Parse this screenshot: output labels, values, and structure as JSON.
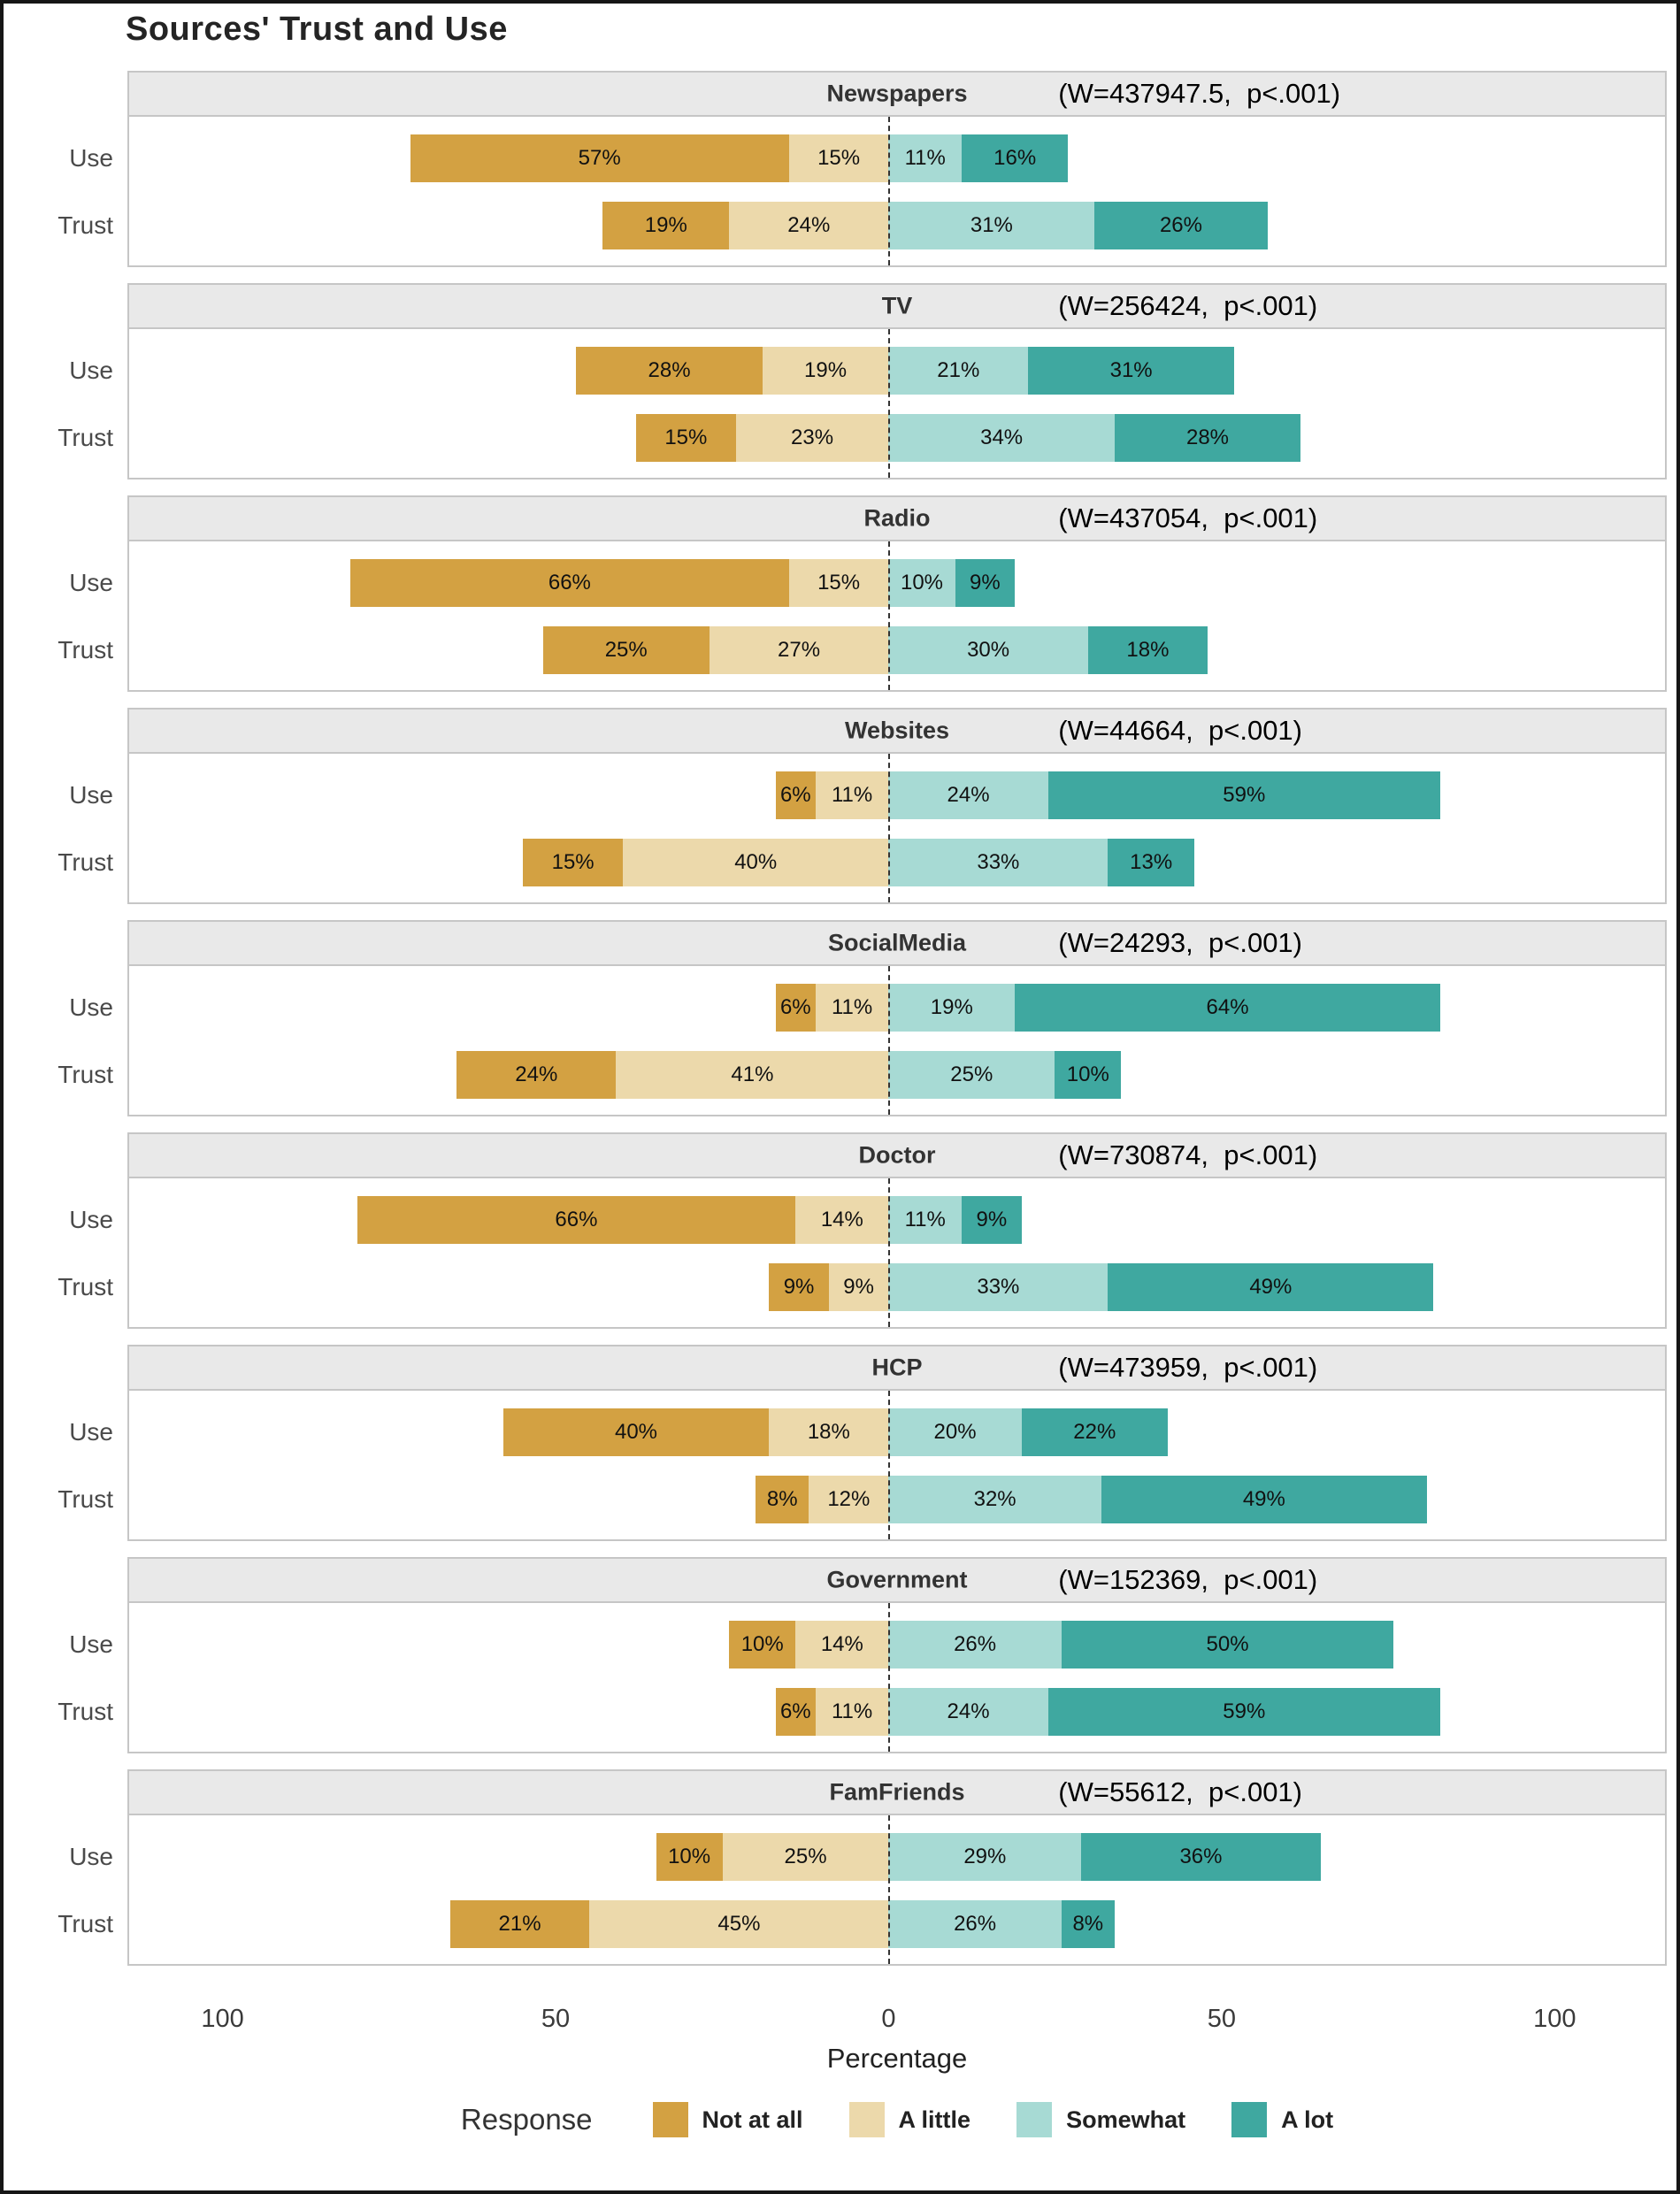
{
  "title": "Sources' Trust and Use",
  "axis": {
    "xlabel": "Percentage",
    "ticks": [
      "100",
      "50",
      "0",
      "50",
      "100"
    ],
    "tick_values": [
      -100,
      -50,
      0,
      50,
      100
    ]
  },
  "legend": {
    "title": "Response",
    "items": [
      {
        "label": "Not at all",
        "color": "#d3a142"
      },
      {
        "label": "A little",
        "color": "#ecd9ab"
      },
      {
        "label": "Somewhat",
        "color": "#a7dad4"
      },
      {
        "label": "A lot",
        "color": "#3fa8a0"
      }
    ]
  },
  "row_labels": {
    "use": "Use",
    "trust": "Trust"
  },
  "chart_data": {
    "type": "bar",
    "subtype": "diverging-stacked-likert",
    "title": "Sources' Trust and Use",
    "xlabel": "Percentage",
    "xlim": [
      -115,
      130
    ],
    "grid": false,
    "legend_position": "bottom",
    "categories": [
      "Not at all",
      "A little",
      "Somewhat",
      "A lot"
    ],
    "negative_categories": [
      "Not at all",
      "A little"
    ],
    "panels": [
      {
        "source": "Newspapers",
        "stat": "(W=437947.5,  p<.001)",
        "rows": [
          {
            "label": "Use",
            "values": [
              57,
              15,
              11,
              16
            ]
          },
          {
            "label": "Trust",
            "values": [
              19,
              24,
              31,
              26
            ]
          }
        ]
      },
      {
        "source": "TV",
        "stat": "(W=256424,  p<.001)",
        "rows": [
          {
            "label": "Use",
            "values": [
              28,
              19,
              21,
              31
            ]
          },
          {
            "label": "Trust",
            "values": [
              15,
              23,
              34,
              28
            ]
          }
        ]
      },
      {
        "source": "Radio",
        "stat": "(W=437054,  p<.001)",
        "rows": [
          {
            "label": "Use",
            "values": [
              66,
              15,
              10,
              9
            ]
          },
          {
            "label": "Trust",
            "values": [
              25,
              27,
              30,
              18
            ]
          }
        ]
      },
      {
        "source": "Websites",
        "stat": "(W=44664,  p<.001)",
        "rows": [
          {
            "label": "Use",
            "values": [
              6,
              11,
              24,
              59
            ]
          },
          {
            "label": "Trust",
            "values": [
              15,
              40,
              33,
              13
            ]
          }
        ]
      },
      {
        "source": "SocialMedia",
        "stat": "(W=24293,  p<.001)",
        "rows": [
          {
            "label": "Use",
            "values": [
              6,
              11,
              19,
              64
            ]
          },
          {
            "label": "Trust",
            "values": [
              24,
              41,
              25,
              10
            ]
          }
        ]
      },
      {
        "source": "Doctor",
        "stat": "(W=730874,  p<.001)",
        "rows": [
          {
            "label": "Use",
            "values": [
              66,
              14,
              11,
              9
            ]
          },
          {
            "label": "Trust",
            "values": [
              9,
              9,
              33,
              49
            ]
          }
        ]
      },
      {
        "source": "HCP",
        "stat": "(W=473959,  p<.001)",
        "rows": [
          {
            "label": "Use",
            "values": [
              40,
              18,
              20,
              22
            ]
          },
          {
            "label": "Trust",
            "values": [
              8,
              12,
              32,
              49
            ]
          }
        ]
      },
      {
        "source": "Government",
        "stat": "(W=152369,  p<.001)",
        "rows": [
          {
            "label": "Use",
            "values": [
              10,
              14,
              26,
              50
            ]
          },
          {
            "label": "Trust",
            "values": [
              6,
              11,
              24,
              59
            ]
          }
        ]
      },
      {
        "source": "FamFriends",
        "stat": "(W=55612,  p<.001)",
        "rows": [
          {
            "label": "Use",
            "values": [
              10,
              25,
              29,
              36
            ]
          },
          {
            "label": "Trust",
            "values": [
              21,
              45,
              26,
              8
            ]
          }
        ]
      }
    ]
  }
}
